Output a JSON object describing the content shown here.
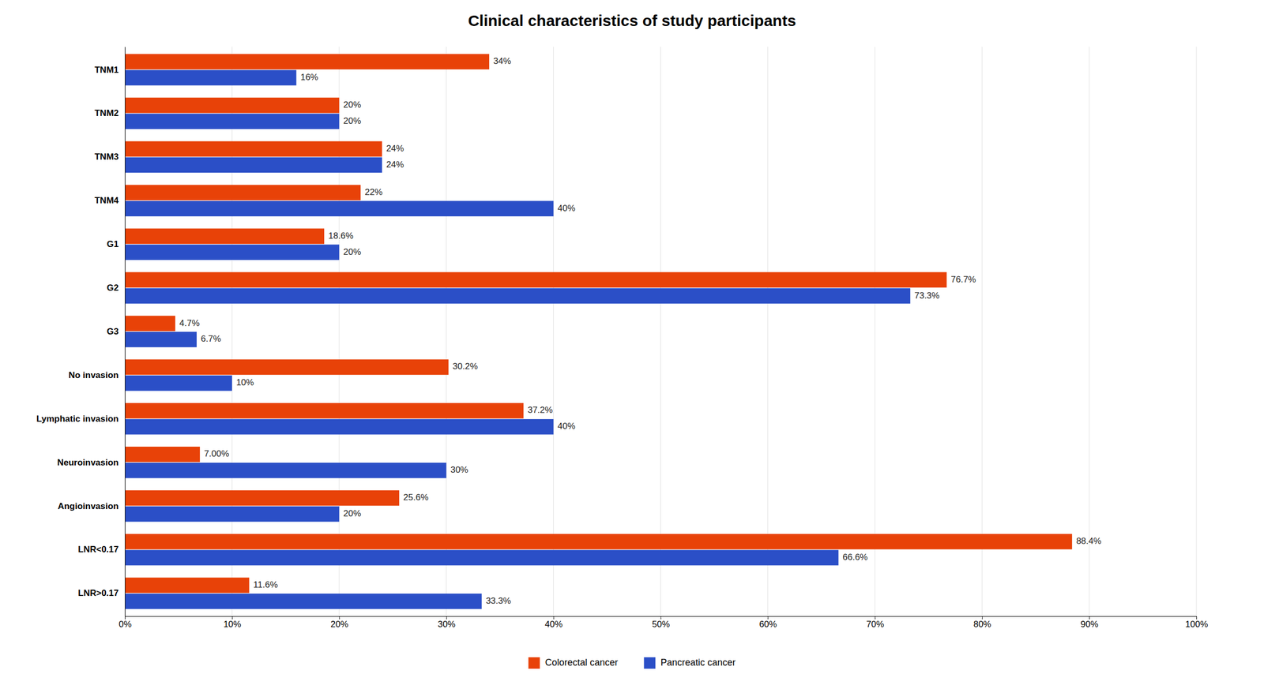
{
  "chart_data": {
    "type": "bar",
    "title": "Clinical characteristics of study participants",
    "orientation": "horizontal",
    "categories": [
      "TNM1",
      "TNM2",
      "TNM3",
      "TNM4",
      "G1",
      "G2",
      "G3",
      "No invasion",
      "Lymphatic invasion",
      "Neuroinvasion",
      "Angioinvasion",
      "LNR<0.17",
      "LNR>0.17"
    ],
    "series": [
      {
        "name": "Colorectal cancer",
        "color": "#E84208",
        "values": [
          34,
          20,
          24,
          22,
          18.6,
          76.7,
          4.7,
          30.2,
          37.2,
          7.0,
          25.6,
          88.4,
          11.6
        ],
        "value_labels": [
          "34%",
          "20%",
          "24%",
          "22%",
          "18.6%",
          "76.7%",
          "4.7%",
          "30.2%",
          "37.2%",
          "7.00%",
          "25.6%",
          "88.4%",
          "11.6%"
        ]
      },
      {
        "name": "Pancreatic cancer",
        "color": "#2B4FC7",
        "values": [
          16,
          20,
          24,
          40,
          20,
          73.3,
          6.7,
          10,
          40,
          30,
          20,
          66.6,
          33.3
        ],
        "value_labels": [
          "16%",
          "20%",
          "24%",
          "40%",
          "20%",
          "73.3%",
          "6.7%",
          "10%",
          "40%",
          "30%",
          "20%",
          "66.6%",
          "33.3%"
        ]
      }
    ],
    "xlim": [
      0,
      100
    ],
    "xticks": [
      {
        "value": 0,
        "label": "0%"
      },
      {
        "value": 10,
        "label": "10%"
      },
      {
        "value": 20,
        "label": "20%"
      },
      {
        "value": 30,
        "label": "30%"
      },
      {
        "value": 40,
        "label": "40%"
      },
      {
        "value": 50,
        "label": "50%"
      },
      {
        "value": 60,
        "label": "60%"
      },
      {
        "value": 70,
        "label": "70%"
      },
      {
        "value": 80,
        "label": "80%"
      },
      {
        "value": 90,
        "label": "90%"
      },
      {
        "value": 100,
        "label": "100%"
      }
    ],
    "grid": true,
    "legend": "bottom",
    "data_labels": true
  }
}
